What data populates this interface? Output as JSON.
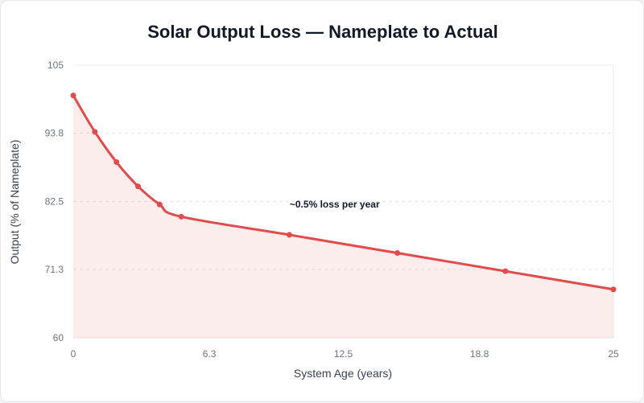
{
  "chart_data": {
    "type": "line",
    "title": "Solar Output Loss — Nameplate to Actual",
    "xlabel": "System Age (years)",
    "ylabel": "Output (% of Nameplate)",
    "xlim": [
      0,
      25
    ],
    "ylim": [
      60,
      105
    ],
    "x_ticks": [
      "0",
      "6.3",
      "12.5",
      "18.8",
      "25"
    ],
    "y_ticks": [
      "105",
      "93.8",
      "82.5",
      "71.3",
      "60"
    ],
    "grid": true,
    "legend": "none",
    "series": [
      {
        "color": "#e14b4b",
        "area": true,
        "points": [
          {
            "x": 0,
            "y": 100
          },
          {
            "x": 1,
            "y": 94
          },
          {
            "x": 2,
            "y": 89
          },
          {
            "x": 3,
            "y": 85
          },
          {
            "x": 4,
            "y": 82
          },
          {
            "x": 5,
            "y": 80
          },
          {
            "x": 10,
            "y": 77
          },
          {
            "x": 15,
            "y": 74
          },
          {
            "x": 20,
            "y": 71
          },
          {
            "x": 25,
            "y": 68
          }
        ]
      }
    ],
    "annotations": [
      {
        "text": "~0.5% loss per year",
        "x": 12.1,
        "y": 81.5
      }
    ]
  }
}
